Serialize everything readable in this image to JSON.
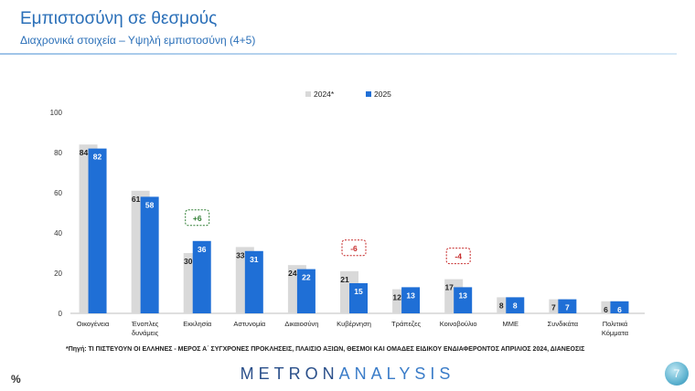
{
  "header": {
    "title": "Εμπιστοσύνη σε θεσμούς",
    "subtitle": "Διαχρονικά στοιχεία – Υψηλή εμπιστοσύνη (4+5)"
  },
  "footnote": "*Πηγή: ΤΙ ΠΙΣΤΕΥΟΥΝ ΟΙ ΕΛΛΗΝΕΣ - ΜΕΡΟΣ Α΄ ΣΥΓΧΡΟΝΕΣ ΠΡΟΚΛΗΣΕΙΣ, ΠΛΑΙΣΙΟ ΑΞΙΩΝ, ΘΕΣΜΟΙ ΚΑΙ ΟΜΑΔΕΣ ΕΙΔΙΚΟΥ ΕΝΔΙΑΦΕΡΟΝΤΟΣ ΑΠΡΙΛΙΟΣ 2024, ΔΙΑΝΕΟΣΙΣ",
  "unit_label": "%",
  "brand": {
    "part1": "METRON",
    "part2": "ANALYSIS"
  },
  "page_number": "7",
  "colors": {
    "series_2024": "#d9d9d9",
    "series_2025": "#1f6fd6",
    "positive": "#2e7d32",
    "negative": "#c62828"
  },
  "chart_data": {
    "type": "bar",
    "title": "",
    "xlabel": "",
    "ylabel": "",
    "ylim": [
      0,
      100
    ],
    "yticks": [
      0,
      20,
      40,
      60,
      80,
      100
    ],
    "grid": false,
    "legend_position": "top-right",
    "categories": [
      [
        "Οικογένεια"
      ],
      [
        "Ένοπλες",
        "δυνάμεις"
      ],
      [
        "Εκκλησία"
      ],
      [
        "Αστυνομία"
      ],
      [
        "Δικαιοσύνη"
      ],
      [
        "Κυβέρνηση"
      ],
      [
        "Τράπεζες"
      ],
      [
        "Κοινοβούλιο"
      ],
      [
        "ΜΜΕ"
      ],
      [
        "Συνδικάτα"
      ],
      [
        "Πολιτικά",
        "Κόμματα"
      ]
    ],
    "series": [
      {
        "name": "2024*",
        "values": [
          84,
          61,
          30,
          33,
          24,
          21,
          12,
          17,
          8,
          7,
          6
        ]
      },
      {
        "name": "2025",
        "values": [
          82,
          58,
          36,
          31,
          22,
          15,
          13,
          13,
          8,
          7,
          6
        ]
      }
    ],
    "annotations": [
      {
        "category_index": 2,
        "text": "+6",
        "sign": "positive"
      },
      {
        "category_index": 5,
        "text": "-6",
        "sign": "negative"
      },
      {
        "category_index": 7,
        "text": "-4",
        "sign": "negative"
      }
    ]
  }
}
